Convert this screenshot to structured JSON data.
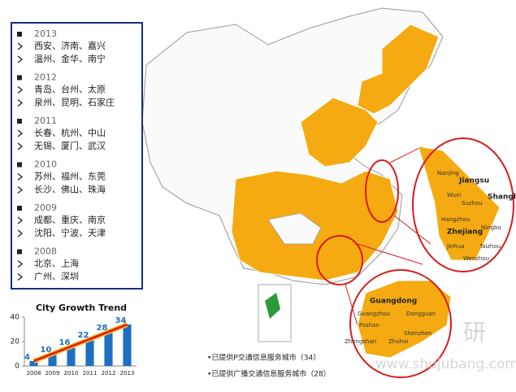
{
  "year_list": [
    {
      "year": "2013",
      "lines": [
        "西安、济南、嘉兴",
        "温州、金华、南宁"
      ]
    },
    {
      "year": "2012",
      "lines": [
        "青岛、台州、太原",
        "泉州、昆明、石家庄"
      ]
    },
    {
      "year": "2011",
      "lines": [
        "长春、杭州、中山",
        "无锡、厦门、武汉"
      ]
    },
    {
      "year": "2010",
      "lines": [
        "苏州、福州、东莞",
        "长沙、佛山、珠海"
      ]
    },
    {
      "year": "2009",
      "lines": [
        "成都、重庆、南京",
        "沈阳、宁波、天津"
      ]
    },
    {
      "year": "2008",
      "lines": [
        "北京、上海",
        "广州、深圳"
      ]
    }
  ],
  "chart_data": {
    "type": "bar",
    "title": "City Growth Trend",
    "categories": [
      "2008",
      "2009",
      "2010",
      "2011",
      "2012",
      "2013"
    ],
    "values": [
      4,
      10,
      16,
      22,
      28,
      34
    ],
    "color": "#1f6fc0",
    "line_color": "#e02020",
    "ylim": [
      0,
      40
    ],
    "yticks": [
      0,
      20,
      40
    ]
  },
  "map": {
    "labels": [
      "Jiangsu",
      "Shanghai",
      "Zhejiang",
      "Nanjing",
      "Wuxi",
      "Suzhou",
      "Hangzhou",
      "Ningbo",
      "Taizhou",
      "Jinhua",
      "Wenzhou",
      "Guangdong",
      "Guangzhou",
      "Dongguan",
      "Foshan",
      "Shenzhen",
      "Zhongshan",
      "Zhuhai"
    ]
  },
  "notes": [
    "•已提供P交通信息服务城市（34）",
    "•已提供广播交通信息服务城市（28）"
  ],
  "watermark": {
    "brand": "研",
    "url": "www.shujubang.com"
  }
}
